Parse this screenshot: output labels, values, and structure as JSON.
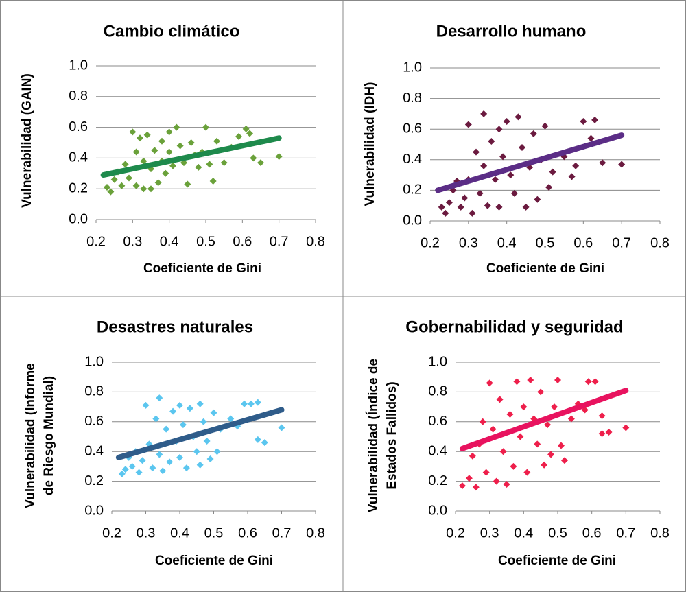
{
  "chart_data": [
    {
      "type": "scatter",
      "title": "Cambio climático",
      "xlabel": "Coeficiente de Gini",
      "ylabel": [
        "Vulnerabilidad (GAIN)"
      ],
      "color": "#6aa13a",
      "x": [
        0.23,
        0.24,
        0.25,
        0.26,
        0.27,
        0.28,
        0.29,
        0.3,
        0.31,
        0.31,
        0.32,
        0.33,
        0.33,
        0.34,
        0.35,
        0.35,
        0.36,
        0.37,
        0.38,
        0.38,
        0.39,
        0.4,
        0.4,
        0.41,
        0.42,
        0.43,
        0.44,
        0.45,
        0.46,
        0.47,
        0.48,
        0.49,
        0.5,
        0.51,
        0.52,
        0.53,
        0.55,
        0.57,
        0.59,
        0.61,
        0.62,
        0.63,
        0.65,
        0.7
      ],
      "values": [
        0.21,
        0.18,
        0.26,
        0.31,
        0.22,
        0.36,
        0.27,
        0.57,
        0.44,
        0.22,
        0.53,
        0.38,
        0.2,
        0.55,
        0.33,
        0.2,
        0.45,
        0.24,
        0.51,
        0.38,
        0.3,
        0.57,
        0.44,
        0.35,
        0.6,
        0.48,
        0.37,
        0.23,
        0.5,
        0.42,
        0.34,
        0.44,
        0.6,
        0.36,
        0.25,
        0.51,
        0.37,
        0.47,
        0.54,
        0.59,
        0.56,
        0.4,
        0.37,
        0.41
      ],
      "trendline": {
        "x": [
          0.22,
          0.7
        ],
        "values": [
          0.29,
          0.53
        ],
        "color": "#1e8a4c"
      },
      "xlim": [
        0.2,
        0.8
      ],
      "xticks": [
        0.2,
        0.3,
        0.4,
        0.5,
        0.6,
        0.7,
        0.8
      ],
      "ylim": [
        0,
        1
      ],
      "yticks": [
        {
          "value": 0,
          "label": "0.0"
        },
        0.2,
        0.4,
        0.6,
        0.8,
        {
          "value": 1,
          "label": "1.0"
        }
      ],
      "grid": true
    },
    {
      "type": "scatter",
      "title": "Desarrollo humano",
      "xlabel": "Coeficiente de Gini",
      "ylabel": [
        "Vulnerabilidad (IDH)"
      ],
      "color": "#6b1a3f",
      "x": [
        0.23,
        0.24,
        0.25,
        0.26,
        0.27,
        0.28,
        0.29,
        0.3,
        0.3,
        0.31,
        0.32,
        0.33,
        0.34,
        0.34,
        0.35,
        0.36,
        0.37,
        0.38,
        0.38,
        0.39,
        0.4,
        0.41,
        0.42,
        0.43,
        0.44,
        0.45,
        0.46,
        0.47,
        0.48,
        0.49,
        0.5,
        0.51,
        0.52,
        0.55,
        0.57,
        0.58,
        0.6,
        0.62,
        0.63,
        0.65,
        0.7
      ],
      "values": [
        0.09,
        0.05,
        0.12,
        0.2,
        0.26,
        0.09,
        0.15,
        0.63,
        0.27,
        0.05,
        0.45,
        0.18,
        0.7,
        0.36,
        0.1,
        0.52,
        0.27,
        0.09,
        0.6,
        0.42,
        0.65,
        0.3,
        0.18,
        0.68,
        0.48,
        0.09,
        0.35,
        0.57,
        0.14,
        0.4,
        0.62,
        0.22,
        0.32,
        0.42,
        0.29,
        0.36,
        0.65,
        0.54,
        0.66,
        0.38,
        0.37
      ],
      "trendline": {
        "x": [
          0.22,
          0.7
        ],
        "values": [
          0.2,
          0.56
        ],
        "color": "#5b2d86"
      },
      "xlim": [
        0.2,
        0.8
      ],
      "xticks": [
        0.2,
        0.3,
        0.4,
        0.5,
        0.6,
        0.7,
        0.8
      ],
      "ylim": [
        0,
        1
      ],
      "yticks": [
        {
          "value": 0,
          "label": "0.0"
        },
        0.2,
        0.4,
        0.6,
        0.8,
        {
          "value": 1,
          "label": "1.0"
        }
      ],
      "grid": true
    },
    {
      "type": "scatter",
      "title": "Desastres naturales",
      "xlabel": "Coeficiente de Gini",
      "ylabel": [
        "Vulnerabilidad (Informe",
        "de Riesgo Mundial)"
      ],
      "color": "#5bc6ef",
      "x": [
        0.23,
        0.24,
        0.25,
        0.26,
        0.27,
        0.28,
        0.29,
        0.3,
        0.31,
        0.32,
        0.33,
        0.34,
        0.34,
        0.35,
        0.36,
        0.37,
        0.38,
        0.39,
        0.4,
        0.4,
        0.41,
        0.42,
        0.43,
        0.44,
        0.45,
        0.46,
        0.46,
        0.47,
        0.48,
        0.49,
        0.5,
        0.51,
        0.52,
        0.55,
        0.57,
        0.59,
        0.61,
        0.63,
        0.63,
        0.65,
        0.7
      ],
      "values": [
        0.25,
        0.28,
        0.36,
        0.3,
        0.4,
        0.26,
        0.34,
        0.71,
        0.45,
        0.29,
        0.62,
        0.76,
        0.38,
        0.27,
        0.55,
        0.33,
        0.67,
        0.47,
        0.71,
        0.36,
        0.58,
        0.29,
        0.69,
        0.5,
        0.4,
        0.72,
        0.31,
        0.6,
        0.47,
        0.35,
        0.66,
        0.4,
        0.55,
        0.62,
        0.57,
        0.72,
        0.72,
        0.73,
        0.48,
        0.46,
        0.56
      ],
      "trendline": {
        "x": [
          0.22,
          0.7
        ],
        "values": [
          0.36,
          0.68
        ],
        "color": "#2f5c8a"
      },
      "xlim": [
        0.2,
        0.8
      ],
      "xticks": [
        0.2,
        0.3,
        0.4,
        0.5,
        0.6,
        0.7,
        0.8
      ],
      "ylim": [
        0,
        1
      ],
      "yticks": [
        {
          "value": 0,
          "label": "0.0"
        },
        0.2,
        0.4,
        0.6,
        0.8,
        {
          "value": 1,
          "label": "1.0"
        }
      ],
      "grid": true
    },
    {
      "type": "scatter",
      "title": "Gobernabilidad y seguridad",
      "xlabel": "Coeficiente de Gini",
      "ylabel": [
        "Vulnerabilidad (Índice de",
        "Estados Fallidos)"
      ],
      "color": "#ee1f4b",
      "x": [
        0.22,
        0.24,
        0.25,
        0.26,
        0.27,
        0.28,
        0.29,
        0.3,
        0.31,
        0.32,
        0.33,
        0.34,
        0.35,
        0.36,
        0.37,
        0.38,
        0.39,
        0.4,
        0.41,
        0.42,
        0.43,
        0.44,
        0.45,
        0.46,
        0.47,
        0.48,
        0.49,
        0.5,
        0.51,
        0.52,
        0.54,
        0.56,
        0.58,
        0.59,
        0.61,
        0.63,
        0.63,
        0.65,
        0.7
      ],
      "values": [
        0.17,
        0.22,
        0.37,
        0.16,
        0.45,
        0.6,
        0.26,
        0.86,
        0.55,
        0.2,
        0.75,
        0.4,
        0.18,
        0.65,
        0.3,
        0.87,
        0.5,
        0.7,
        0.26,
        0.88,
        0.62,
        0.45,
        0.8,
        0.31,
        0.58,
        0.38,
        0.7,
        0.88,
        0.44,
        0.34,
        0.62,
        0.72,
        0.68,
        0.87,
        0.87,
        0.64,
        0.52,
        0.53,
        0.56
      ],
      "trendline": {
        "x": [
          0.22,
          0.7
        ],
        "values": [
          0.42,
          0.81
        ],
        "color": "#e8135f"
      },
      "xlim": [
        0.2,
        0.8
      ],
      "xticks": [
        0.2,
        0.3,
        0.4,
        0.5,
        0.6,
        0.7,
        0.8
      ],
      "ylim": [
        0,
        1
      ],
      "yticks": [
        {
          "value": 0,
          "label": "0.0"
        },
        0.2,
        0.4,
        0.6,
        0.8,
        {
          "value": 1,
          "label": "1.0"
        }
      ],
      "grid": true
    }
  ]
}
